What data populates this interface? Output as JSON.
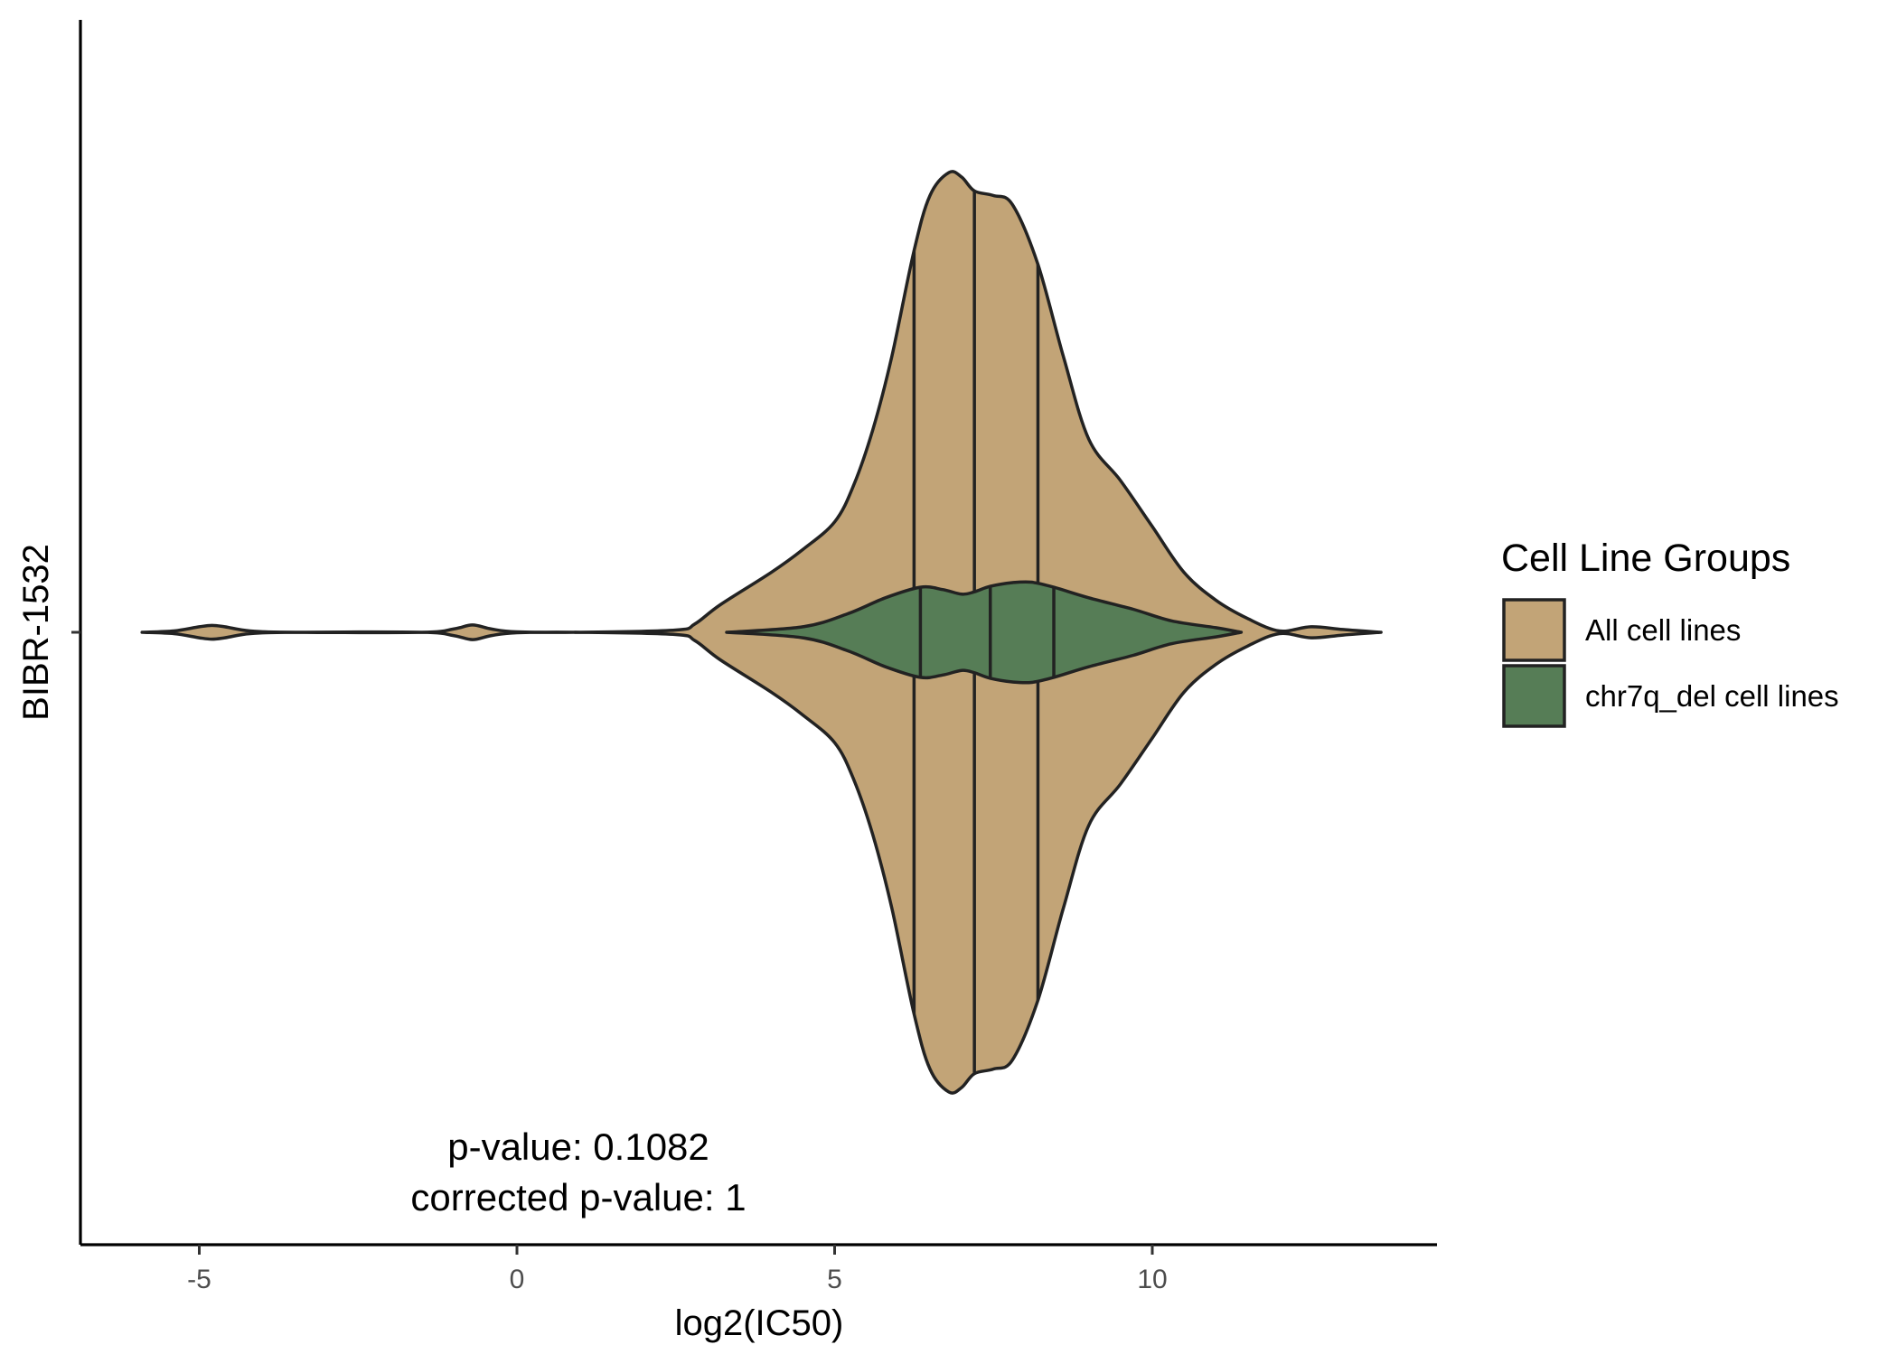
{
  "chart_data": {
    "type": "violin",
    "xlabel": "log2(IC50)",
    "ylabel": "",
    "category": "BIBR-1532",
    "xlim": [
      -7,
      14.5
    ],
    "x_ticks": [
      -5,
      0,
      5,
      10
    ],
    "annotations": [
      "p-value: 0.1082",
      "corrected p-value: 1"
    ],
    "legend": {
      "title": "Cell Line Groups",
      "placement": "right",
      "items": [
        {
          "label": "All cell lines",
          "color": "#c2a477"
        },
        {
          "label": "chr7q_del cell lines",
          "color": "#567d56"
        }
      ]
    },
    "series": [
      {
        "name": "All cell lines",
        "color": "#c2a477",
        "quantiles": [
          6.25,
          7.2,
          8.2
        ],
        "max_density": 1.0,
        "profile": [
          [
            -5.9,
            0.0
          ],
          [
            -5.4,
            0.003
          ],
          [
            -5.0,
            0.012
          ],
          [
            -4.8,
            0.015
          ],
          [
            -4.6,
            0.012
          ],
          [
            -4.2,
            0.003
          ],
          [
            -3.5,
            0.0
          ],
          [
            -1.5,
            0.0
          ],
          [
            -1.0,
            0.007
          ],
          [
            -0.7,
            0.016
          ],
          [
            -0.4,
            0.007
          ],
          [
            0.0,
            0.001
          ],
          [
            1.0,
            0.0
          ],
          [
            2.5,
            0.005
          ],
          [
            2.8,
            0.018
          ],
          [
            3.2,
            0.06
          ],
          [
            4.0,
            0.13
          ],
          [
            4.5,
            0.18
          ],
          [
            5.0,
            0.24
          ],
          [
            5.3,
            0.32
          ],
          [
            5.6,
            0.44
          ],
          [
            5.9,
            0.6
          ],
          [
            6.25,
            0.83
          ],
          [
            6.5,
            0.95
          ],
          [
            6.8,
            1.0
          ],
          [
            7.0,
            0.99
          ],
          [
            7.2,
            0.96
          ],
          [
            7.5,
            0.95
          ],
          [
            7.8,
            0.93
          ],
          [
            8.2,
            0.8
          ],
          [
            8.6,
            0.6
          ],
          [
            9.0,
            0.42
          ],
          [
            9.5,
            0.33
          ],
          [
            10.0,
            0.23
          ],
          [
            10.5,
            0.13
          ],
          [
            11.0,
            0.07
          ],
          [
            11.5,
            0.03
          ],
          [
            12.0,
            0.003
          ],
          [
            12.5,
            0.012
          ],
          [
            13.0,
            0.006
          ],
          [
            13.6,
            0.0
          ]
        ]
      },
      {
        "name": "chr7q_del cell lines",
        "color": "#567d56",
        "quantiles": [
          6.35,
          7.45,
          8.45
        ],
        "max_density": 0.11,
        "profile": [
          [
            3.3,
            0.0
          ],
          [
            4.5,
            0.012
          ],
          [
            5.2,
            0.04
          ],
          [
            5.8,
            0.075
          ],
          [
            6.35,
            0.098
          ],
          [
            6.7,
            0.093
          ],
          [
            7.0,
            0.083
          ],
          [
            7.2,
            0.088
          ],
          [
            7.45,
            0.1
          ],
          [
            7.8,
            0.108
          ],
          [
            8.1,
            0.109
          ],
          [
            8.45,
            0.098
          ],
          [
            9.0,
            0.075
          ],
          [
            9.7,
            0.05
          ],
          [
            10.3,
            0.025
          ],
          [
            11.0,
            0.01
          ],
          [
            11.4,
            0.0
          ]
        ]
      }
    ]
  }
}
